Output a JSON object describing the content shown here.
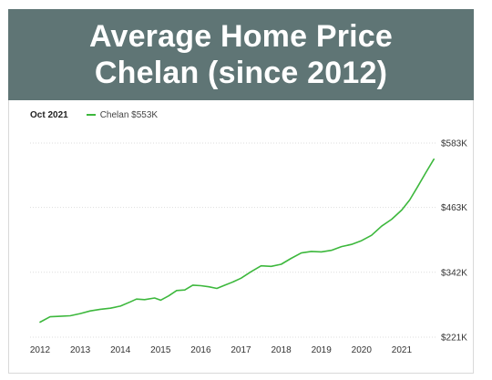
{
  "banner": {
    "line1": "Average Home Price",
    "line2": "Chelan (since 2012)"
  },
  "legend": {
    "date": "Oct 2021",
    "series_label": "Chelan $553K"
  },
  "colors": {
    "banner_bg": "#5f7575",
    "series": "#3db83d",
    "gridline": "#dddddd"
  },
  "chart_data": {
    "type": "line",
    "title": "",
    "xlabel": "",
    "ylabel": "",
    "x_ticks": [
      "2012",
      "2013",
      "2014",
      "2015",
      "2016",
      "2017",
      "2018",
      "2019",
      "2020",
      "2021"
    ],
    "y_ticks": [
      {
        "value": 221,
        "label": "$221K"
      },
      {
        "value": 342,
        "label": "$342K"
      },
      {
        "value": 463,
        "label": "$463K"
      },
      {
        "value": 583,
        "label": "$583K"
      }
    ],
    "ylim": [
      221,
      583
    ],
    "xlim": [
      2012.0,
      2022.0
    ],
    "grid": "horizontal",
    "series": [
      {
        "name": "Chelan",
        "x": [
          2012.0,
          2012.25,
          2012.5,
          2012.75,
          2013.0,
          2013.25,
          2013.5,
          2013.75,
          2014.0,
          2014.25,
          2014.4,
          2014.6,
          2014.85,
          2015.0,
          2015.2,
          2015.4,
          2015.6,
          2015.8,
          2016.0,
          2016.2,
          2016.4,
          2016.6,
          2016.8,
          2017.0,
          2017.25,
          2017.5,
          2017.75,
          2018.0,
          2018.25,
          2018.5,
          2018.75,
          2019.0,
          2019.25,
          2019.5,
          2019.75,
          2020.0,
          2020.25,
          2020.5,
          2020.75,
          2021.0,
          2021.2,
          2021.4,
          2021.6,
          2021.8
        ],
        "y": [
          249,
          259,
          260,
          261,
          265,
          270,
          273,
          275,
          279,
          287,
          292,
          291,
          294,
          290,
          298,
          308,
          309,
          318,
          317,
          315,
          312,
          318,
          324,
          331,
          343,
          354,
          353,
          357,
          368,
          378,
          381,
          380,
          383,
          390,
          394,
          401,
          411,
          428,
          441,
          458,
          477,
          502,
          528,
          553
        ]
      }
    ]
  }
}
